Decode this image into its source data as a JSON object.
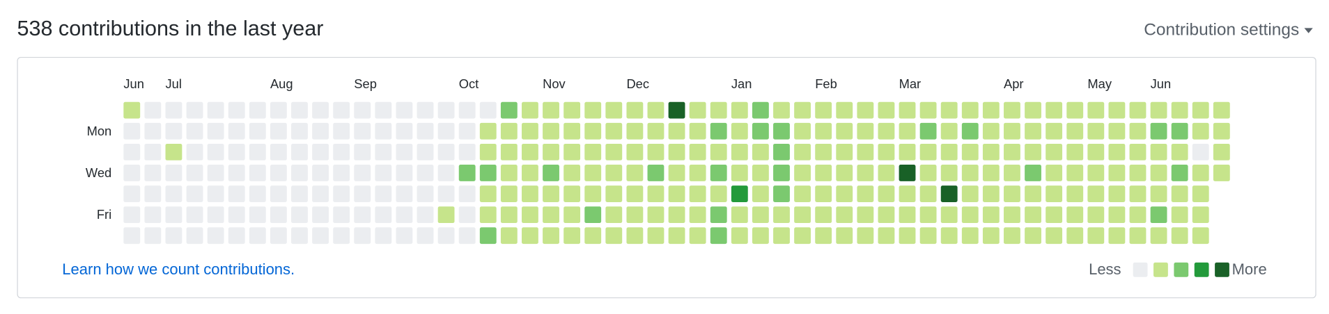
{
  "header": {
    "title": "538 contributions in the last year",
    "settings": "Contribution settings"
  },
  "calendar": {
    "month_labels": [
      "Jun",
      null,
      "Jul",
      null,
      null,
      null,
      null,
      "Aug",
      null,
      null,
      null,
      "Sep",
      null,
      null,
      null,
      null,
      "Oct",
      null,
      null,
      null,
      "Nov",
      null,
      null,
      null,
      "Dec",
      null,
      null,
      null,
      null,
      "Jan",
      null,
      null,
      null,
      "Feb",
      null,
      null,
      null,
      "Mar",
      null,
      null,
      null,
      null,
      "Apr",
      null,
      null,
      null,
      "May",
      null,
      null,
      "Jun",
      null,
      null,
      null
    ],
    "day_labels": [
      null,
      "Mon",
      null,
      "Wed",
      null,
      "Fri",
      null
    ],
    "level_colors": [
      "#ebedf0",
      "#c6e48b",
      "#7bc96f",
      "#239a3b",
      "#196127"
    ],
    "weeks": [
      [
        1,
        0,
        0,
        0,
        0,
        0,
        0
      ],
      [
        0,
        0,
        0,
        0,
        0,
        0,
        0
      ],
      [
        0,
        0,
        1,
        0,
        0,
        0,
        0
      ],
      [
        0,
        0,
        0,
        0,
        0,
        0,
        0
      ],
      [
        0,
        0,
        0,
        0,
        0,
        0,
        0
      ],
      [
        0,
        0,
        0,
        0,
        0,
        0,
        0
      ],
      [
        0,
        0,
        0,
        0,
        0,
        0,
        0
      ],
      [
        0,
        0,
        0,
        0,
        0,
        0,
        0
      ],
      [
        0,
        0,
        0,
        0,
        0,
        0,
        0
      ],
      [
        0,
        0,
        0,
        0,
        0,
        0,
        0
      ],
      [
        0,
        0,
        0,
        0,
        0,
        0,
        0
      ],
      [
        0,
        0,
        0,
        0,
        0,
        0,
        0
      ],
      [
        0,
        0,
        0,
        0,
        0,
        0,
        0
      ],
      [
        0,
        0,
        0,
        0,
        0,
        0,
        0
      ],
      [
        0,
        0,
        0,
        0,
        0,
        0,
        0
      ],
      [
        0,
        0,
        0,
        0,
        0,
        1,
        0
      ],
      [
        0,
        0,
        0,
        2,
        0,
        0,
        0
      ],
      [
        0,
        1,
        1,
        2,
        1,
        1,
        2
      ],
      [
        2,
        1,
        1,
        1,
        1,
        1,
        1
      ],
      [
        1,
        1,
        1,
        1,
        1,
        1,
        1
      ],
      [
        1,
        1,
        1,
        2,
        1,
        1,
        1
      ],
      [
        1,
        1,
        1,
        1,
        1,
        1,
        1
      ],
      [
        1,
        1,
        1,
        1,
        1,
        2,
        1
      ],
      [
        1,
        1,
        1,
        1,
        1,
        1,
        1
      ],
      [
        1,
        1,
        1,
        1,
        1,
        1,
        1
      ],
      [
        1,
        1,
        1,
        2,
        1,
        1,
        1
      ],
      [
        4,
        1,
        1,
        1,
        1,
        1,
        1
      ],
      [
        1,
        1,
        1,
        1,
        1,
        1,
        1
      ],
      [
        1,
        2,
        1,
        2,
        1,
        2,
        2
      ],
      [
        1,
        1,
        1,
        1,
        3,
        1,
        1
      ],
      [
        2,
        2,
        1,
        1,
        1,
        1,
        1
      ],
      [
        1,
        2,
        2,
        2,
        2,
        1,
        1
      ],
      [
        1,
        1,
        1,
        1,
        1,
        1,
        1
      ],
      [
        1,
        1,
        1,
        1,
        1,
        1,
        1
      ],
      [
        1,
        1,
        1,
        1,
        1,
        1,
        1
      ],
      [
        1,
        1,
        1,
        1,
        1,
        1,
        1
      ],
      [
        1,
        1,
        1,
        1,
        1,
        1,
        1
      ],
      [
        1,
        1,
        1,
        4,
        1,
        1,
        1
      ],
      [
        1,
        2,
        1,
        1,
        1,
        1,
        1
      ],
      [
        1,
        1,
        1,
        1,
        4,
        1,
        1
      ],
      [
        1,
        2,
        1,
        1,
        1,
        1,
        1
      ],
      [
        1,
        1,
        1,
        1,
        1,
        1,
        1
      ],
      [
        1,
        1,
        1,
        1,
        1,
        1,
        1
      ],
      [
        1,
        1,
        1,
        2,
        1,
        1,
        1
      ],
      [
        1,
        1,
        1,
        1,
        1,
        1,
        1
      ],
      [
        1,
        1,
        1,
        1,
        1,
        1,
        1
      ],
      [
        1,
        1,
        1,
        1,
        1,
        1,
        1
      ],
      [
        1,
        1,
        1,
        1,
        1,
        1,
        1
      ],
      [
        1,
        1,
        1,
        1,
        1,
        1,
        1
      ],
      [
        1,
        2,
        1,
        1,
        1,
        2,
        1
      ],
      [
        1,
        2,
        1,
        2,
        1,
        1,
        1
      ],
      [
        1,
        1,
        0,
        1,
        1,
        1,
        1
      ],
      [
        1,
        1,
        1,
        1,
        null,
        null,
        null
      ]
    ]
  },
  "footer": {
    "link": "Learn how we count contributions.",
    "less": "Less",
    "more": "More"
  }
}
